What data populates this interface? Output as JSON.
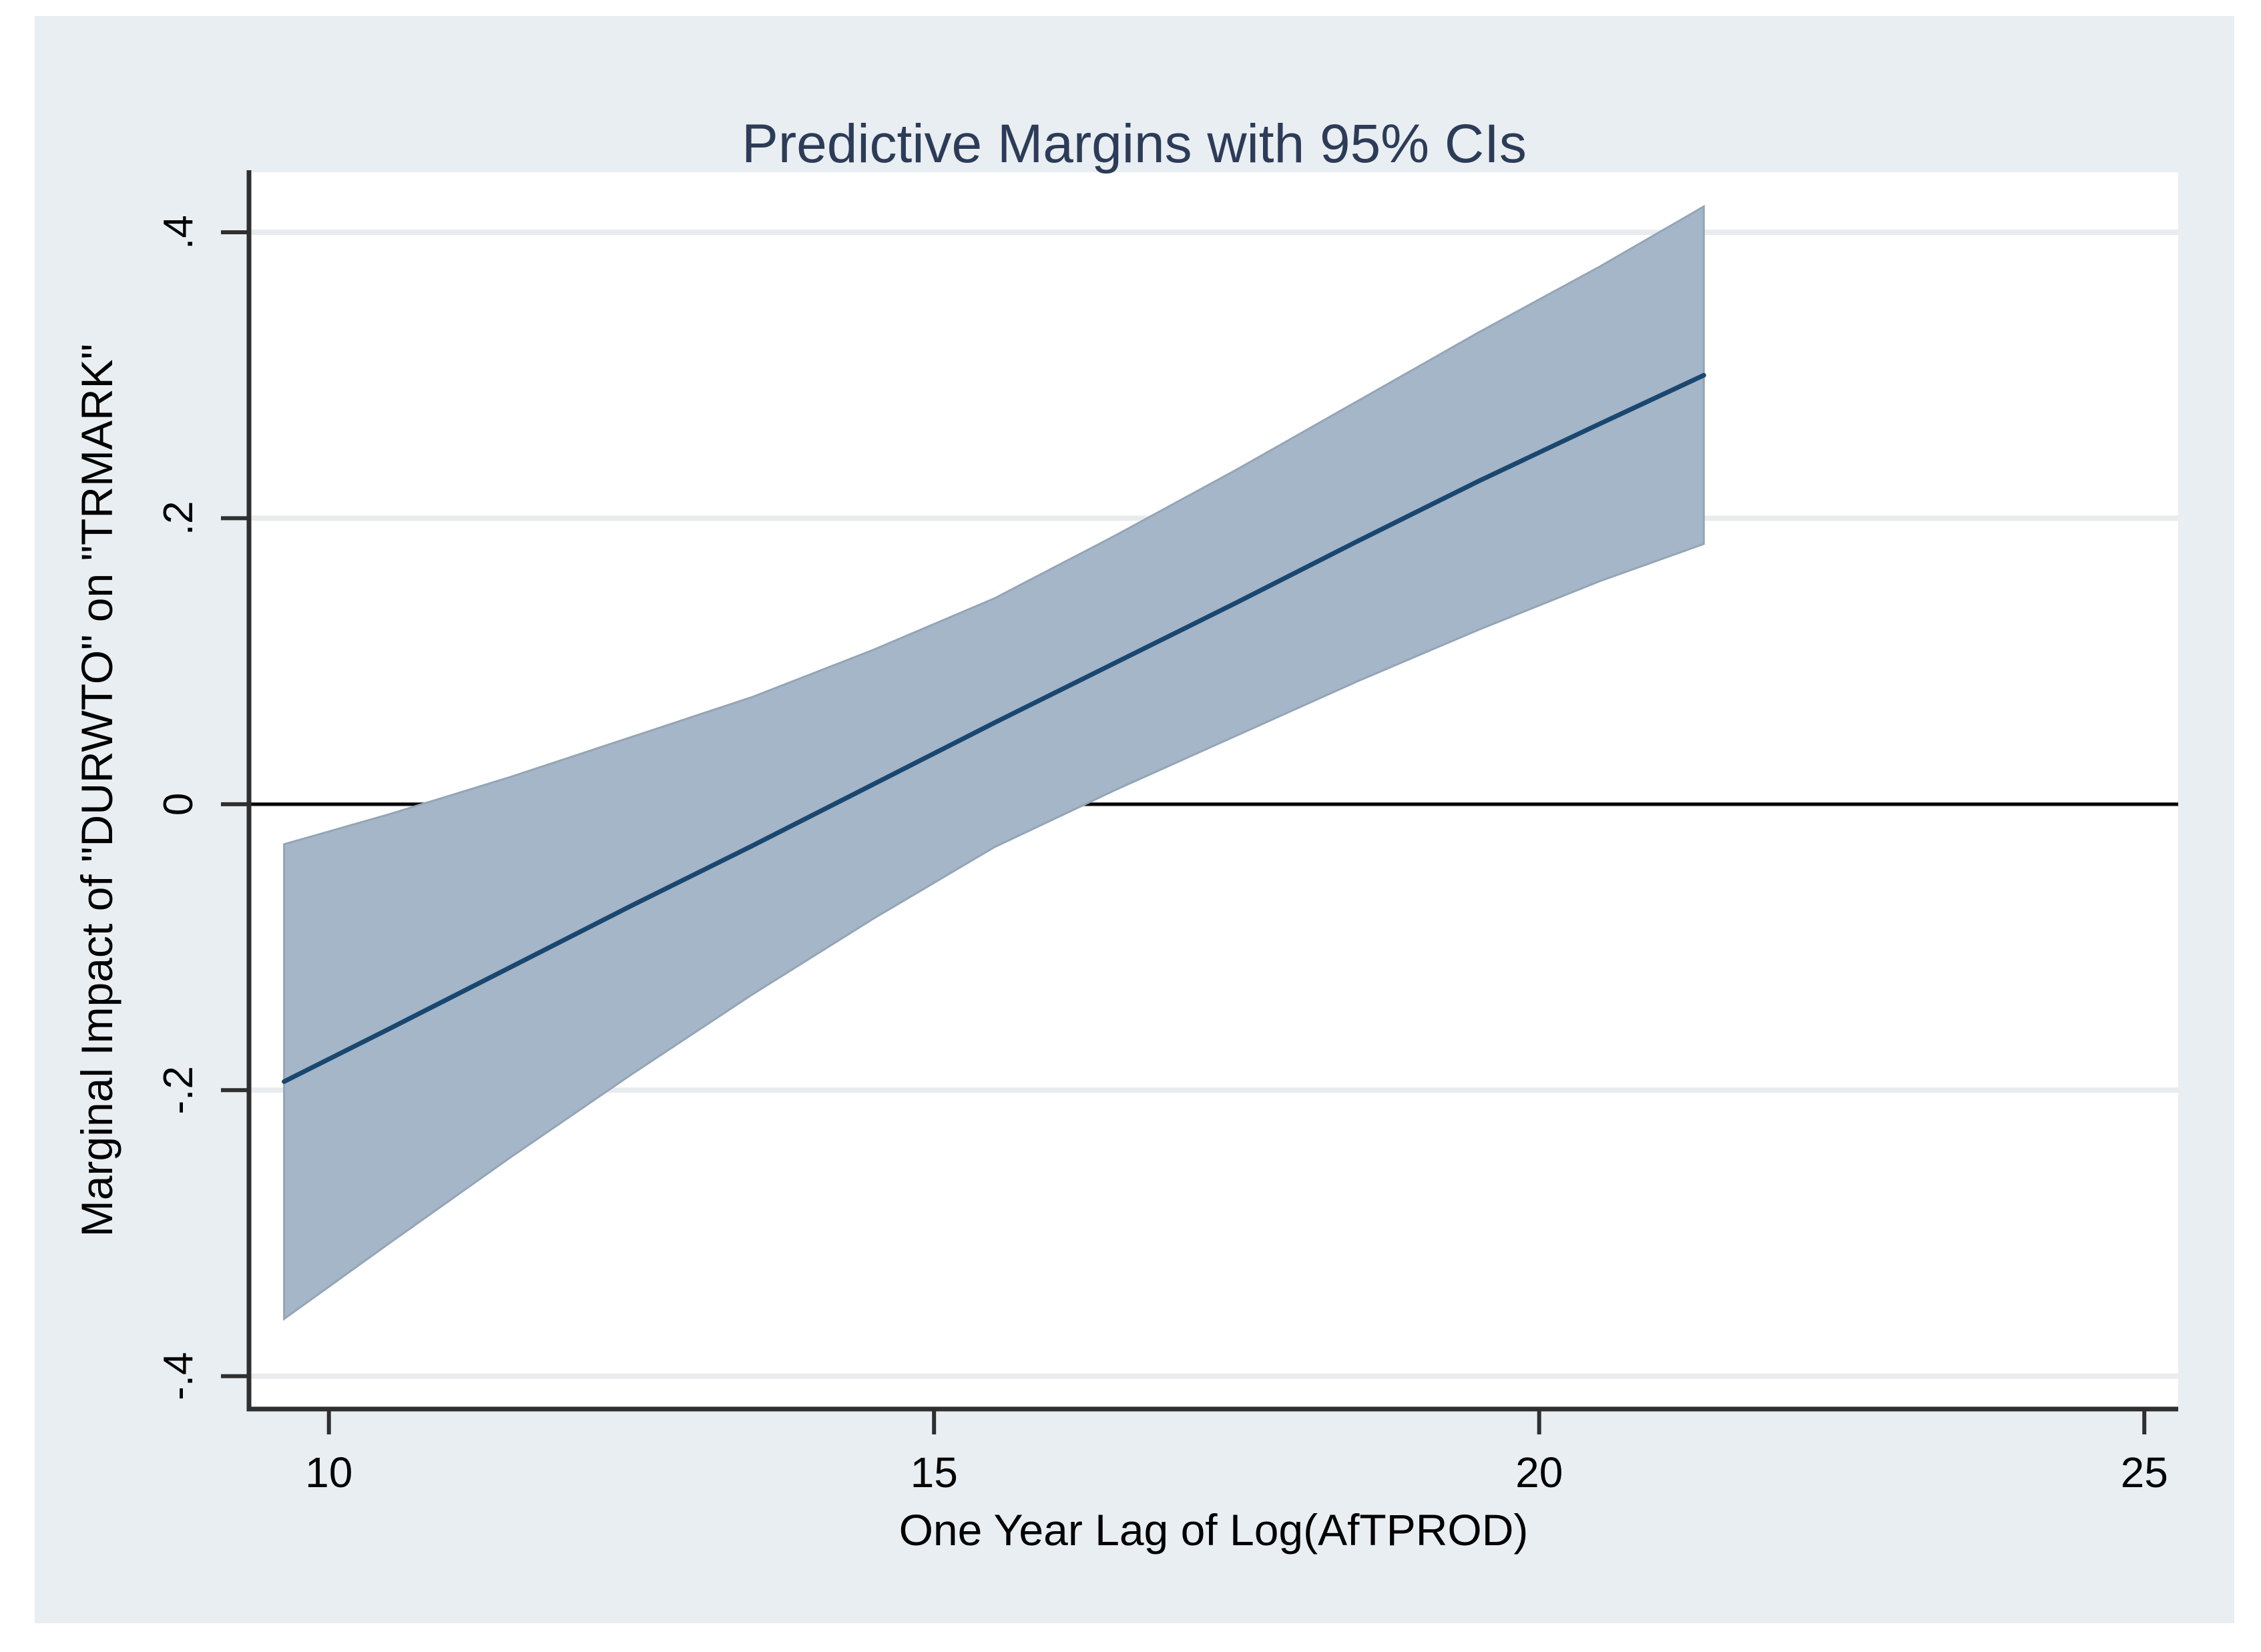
{
  "window": {
    "description": "Stata-style predictive margins plot"
  },
  "chart_data": {
    "type": "line",
    "title": "Predictive Margins with 95% CIs",
    "xlabel": "One Year Lag of Log(AfTPROD)",
    "ylabel": "Marginal Impact of \"DURWTO\" on \"TRMARK\"",
    "xlim": [
      9.34,
      25.28
    ],
    "ylim": [
      -0.423,
      0.442
    ],
    "x_ticks": {
      "values": [
        10,
        15,
        20,
        25
      ],
      "labels": [
        "10",
        "15",
        "20",
        "25"
      ]
    },
    "y_ticks": {
      "values": [
        0.4,
        0.2,
        0,
        -0.2,
        -0.4
      ],
      "labels": [
        ".4",
        ".2",
        "0",
        "-.2",
        "-.4"
      ]
    },
    "grid": "horizontal-only",
    "legend": "none",
    "reference_line_y": 0,
    "x": [
      9.63,
      10.5,
      11.5,
      12.5,
      13.5,
      14.5,
      15.5,
      16.5,
      17.5,
      18.5,
      19.5,
      20.5,
      21.36
    ],
    "series": [
      {
        "name": "Predictive Margin",
        "values": [
          -0.194,
          -0.157,
          -0.114,
          -0.071,
          -0.029,
          0.014,
          0.057,
          0.099,
          0.141,
          0.184,
          0.226,
          0.266,
          0.3
        ]
      },
      {
        "name": "95% CI Upper Bound",
        "values": [
          -0.028,
          -0.007,
          0.019,
          0.047,
          0.075,
          0.108,
          0.144,
          0.188,
          0.234,
          0.282,
          0.33,
          0.376,
          0.418
        ]
      },
      {
        "name": "95% CI Lower Bound",
        "values": [
          -0.36,
          -0.307,
          -0.247,
          -0.189,
          -0.133,
          -0.08,
          -0.03,
          0.01,
          0.048,
          0.086,
          0.122,
          0.156,
          0.182
        ]
      }
    ],
    "colors": {
      "canvas_background": "#e9eef2",
      "plot_background": "#ffffff",
      "ci_band": "#a4b6c8",
      "ci_band_edge": "#93a5b6",
      "line": "#1a476f",
      "reference_line": "#000000",
      "grid": "#e8ecee",
      "axis": "#2f2f2f",
      "tick_text": "#000000",
      "title_text": "#2c3c58"
    }
  }
}
